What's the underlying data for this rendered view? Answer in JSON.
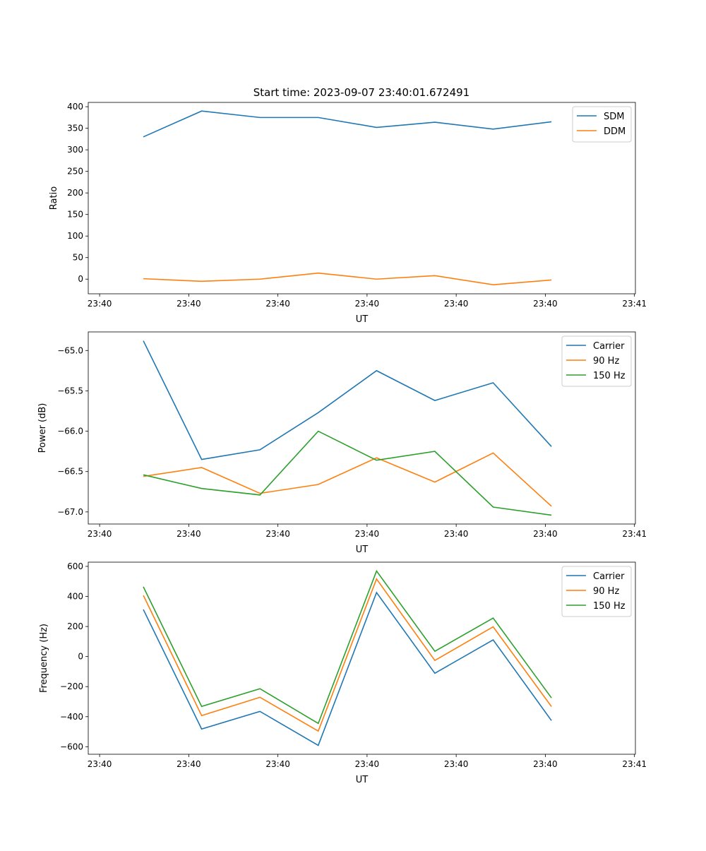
{
  "title": "Start time: 2023-09-07 23:40:01.672491",
  "colors": {
    "blue": "#1f77b4",
    "orange": "#ff7f0e",
    "green": "#2ca02c"
  },
  "chart_data": [
    {
      "type": "line",
      "xlabel": "UT",
      "ylabel": "Ratio",
      "x": [
        0,
        1,
        2,
        3,
        4,
        5,
        6,
        7
      ],
      "xlim": [
        -0.945,
        8.44
      ],
      "xticks": [
        -0.75,
        0.779,
        2.308,
        3.837,
        5.366,
        6.895,
        8.424
      ],
      "xtick_labels": [
        "23:40",
        "23:40",
        "23:40",
        "23:40",
        "23:40",
        "23:40",
        "23:41"
      ],
      "ylim": [
        -34,
        410
      ],
      "yticks": [
        0,
        50,
        100,
        150,
        200,
        250,
        300,
        350,
        400
      ],
      "ytick_labels": [
        "0",
        "50",
        "100",
        "150",
        "200",
        "250",
        "300",
        "350",
        "400"
      ],
      "legend": "top-right",
      "series": [
        {
          "name": "SDM",
          "color": "#1f77b4",
          "values": [
            330,
            390,
            375,
            375,
            352,
            364,
            348,
            365
          ]
        },
        {
          "name": "DDM",
          "color": "#ff7f0e",
          "values": [
            1,
            -5,
            0,
            14,
            0,
            8,
            -13,
            -2
          ]
        }
      ]
    },
    {
      "type": "line",
      "xlabel": "UT",
      "ylabel": "Power (dB)",
      "x": [
        0,
        1,
        2,
        3,
        4,
        5,
        6,
        7
      ],
      "xlim": [
        -0.945,
        8.44
      ],
      "xticks": [
        -0.75,
        0.779,
        2.308,
        3.837,
        5.366,
        6.895,
        8.424
      ],
      "xtick_labels": [
        "23:40",
        "23:40",
        "23:40",
        "23:40",
        "23:40",
        "23:40",
        "23:41"
      ],
      "ylim": [
        -67.15,
        -64.77
      ],
      "yticks": [
        -65.0,
        -65.5,
        -66.0,
        -66.5,
        -67.0
      ],
      "ytick_labels": [
        "−65.0",
        "−65.5",
        "−66.0",
        "−66.5",
        "−67.0"
      ],
      "legend": "top-right",
      "series": [
        {
          "name": "Carrier",
          "color": "#1f77b4",
          "values": [
            -64.88,
            -66.35,
            -66.23,
            -65.77,
            -65.25,
            -65.62,
            -65.4,
            -66.19
          ]
        },
        {
          "name": "90 Hz",
          "color": "#ff7f0e",
          "values": [
            -66.56,
            -66.45,
            -66.77,
            -66.66,
            -66.33,
            -66.63,
            -66.27,
            -66.93
          ]
        },
        {
          "name": "150 Hz",
          "color": "#2ca02c",
          "values": [
            -66.54,
            -66.71,
            -66.79,
            -66.0,
            -66.36,
            -66.25,
            -66.94,
            -67.04
          ]
        }
      ]
    },
    {
      "type": "line",
      "xlabel": "UT",
      "ylabel": "Frequency (Hz)",
      "x": [
        0,
        1,
        2,
        3,
        4,
        5,
        6,
        7
      ],
      "xlim": [
        -0.945,
        8.44
      ],
      "xticks": [
        -0.75,
        0.779,
        2.308,
        3.837,
        5.366,
        6.895,
        8.424
      ],
      "xtick_labels": [
        "23:40",
        "23:40",
        "23:40",
        "23:40",
        "23:40",
        "23:40",
        "23:41"
      ],
      "ylim": [
        -650,
        628
      ],
      "yticks": [
        -600,
        -400,
        -200,
        0,
        200,
        400,
        600
      ],
      "ytick_labels": [
        "−600",
        "−400",
        "−200",
        "0",
        "200",
        "400",
        "600"
      ],
      "legend": "top-right",
      "series": [
        {
          "name": "Carrier",
          "color": "#1f77b4",
          "values": [
            313,
            -482,
            -365,
            -591,
            426,
            -111,
            111,
            -426
          ]
        },
        {
          "name": "90 Hz",
          "color": "#ff7f0e",
          "values": [
            407,
            -393,
            -271,
            -496,
            516,
            -26,
            198,
            -333
          ]
        },
        {
          "name": "150 Hz",
          "color": "#2ca02c",
          "values": [
            464,
            -332,
            -214,
            -445,
            569,
            35,
            256,
            -275
          ]
        }
      ]
    }
  ]
}
